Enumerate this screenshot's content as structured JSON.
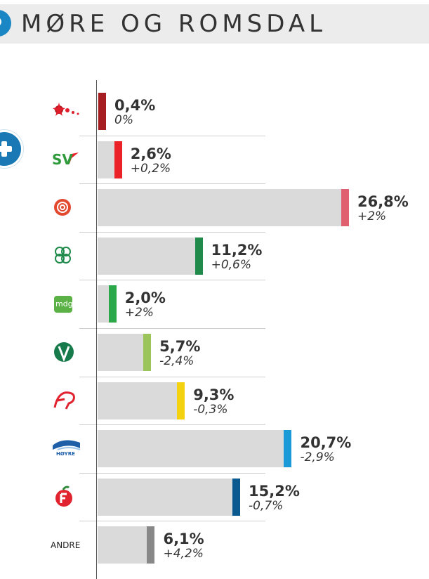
{
  "header": {
    "title": "MØRE OG ROMSDAL"
  },
  "chart_data": {
    "type": "bar",
    "orientation": "horizontal",
    "title": "MØRE OG ROMSDAL",
    "categories": [
      "Rødt",
      "SV",
      "Ap",
      "Sp",
      "MDG",
      "Venstre",
      "KrF",
      "Høyre",
      "FrP",
      "ANDRE"
    ],
    "values": [
      0.4,
      2.6,
      26.8,
      11.2,
      2.0,
      5.7,
      9.3,
      20.7,
      15.2,
      6.1
    ],
    "value_labels": [
      "0,4%",
      "2,6%",
      "26,8%",
      "11,2%",
      "2,0%",
      "5,7%",
      "9,3%",
      "20,7%",
      "15,2%",
      "6,1%"
    ],
    "change_labels": [
      "0%",
      "+0,2%",
      "+2%",
      "+0,6%",
      "+2%",
      "-2,4%",
      "-0,3%",
      "-2,9%",
      "-0,7%",
      "+4,2%"
    ],
    "colors": [
      "#a61e22",
      "#eb2227",
      "#e06070",
      "#1f8a4a",
      "#2aa84a",
      "#9bc45a",
      "#f4d20f",
      "#1a9ad6",
      "#0a5a90",
      "#888888"
    ],
    "logo_texts": [
      "",
      "SV",
      "",
      "",
      "mdg",
      "V",
      "KrF",
      "HØYRE",
      "",
      "ANDRE"
    ],
    "xlim": [
      0,
      28
    ],
    "grid": false,
    "legend": "none"
  }
}
